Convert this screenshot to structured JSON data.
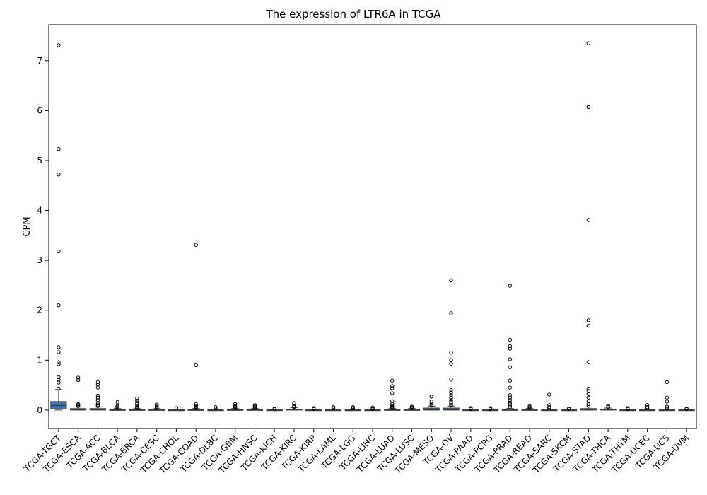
{
  "chart_data": {
    "type": "box",
    "title": "The expression of LTR6A in TCGA",
    "xlabel": "",
    "ylabel": "CPM",
    "ylim": [
      -0.37,
      7.72
    ],
    "yticks": [
      0,
      1,
      2,
      3,
      4,
      5,
      6,
      7
    ],
    "box_color": "#3b75af",
    "categories": [
      "TCGA-TGCT",
      "TCGA-ESCA",
      "TCGA-ACC",
      "TCGA-BLCA",
      "TCGA-BRCA",
      "TCGA-CESC",
      "TCGA-CHOL",
      "TCGA-COAD",
      "TCGA-DLBC",
      "TCGA-GBM",
      "TCGA-HNSC",
      "TCGA-KICH",
      "TCGA-KIRC",
      "TCGA-KIRP",
      "TCGA-LAML",
      "TCGA-LGG",
      "TCGA-LIHC",
      "TCGA-LUAD",
      "TCGA-LUSC",
      "TCGA-MESO",
      "TCGA-OV",
      "TCGA-PAAD",
      "TCGA-PCPG",
      "TCGA-PRAD",
      "TCGA-READ",
      "TCGA-SARC",
      "TCGA-SKCM",
      "TCGA-STAD",
      "TCGA-THCA",
      "TCGA-THYM",
      "TCGA-UCEC",
      "TCGA-UCS",
      "TCGA-UVM"
    ],
    "boxes": [
      {
        "q1": 0.02,
        "median": 0.09,
        "q3": 0.17,
        "whisker_low": 0.0,
        "whisker_high": 0.41,
        "outliers": [
          7.31,
          5.23,
          4.72,
          3.18,
          2.1,
          1.26,
          1.16,
          0.96,
          0.92,
          0.66,
          0.61,
          0.55,
          0.43
        ]
      },
      {
        "q1": 0.0,
        "median": 0.01,
        "q3": 0.03,
        "whisker_low": 0.0,
        "whisker_high": 0.06,
        "outliers": [
          0.65,
          0.6,
          0.12,
          0.1,
          0.08
        ]
      },
      {
        "q1": 0.0,
        "median": 0.01,
        "q3": 0.03,
        "whisker_low": 0.0,
        "whisker_high": 0.06,
        "outliers": [
          0.56,
          0.51,
          0.45,
          0.29,
          0.25,
          0.2,
          0.13,
          0.1,
          0.08
        ]
      },
      {
        "q1": 0.0,
        "median": 0.0,
        "q3": 0.01,
        "whisker_low": 0.0,
        "whisker_high": 0.03,
        "outliers": [
          0.16,
          0.08,
          0.06,
          0.04
        ]
      },
      {
        "q1": 0.0,
        "median": 0.0,
        "q3": 0.01,
        "whisker_low": 0.0,
        "whisker_high": 0.03,
        "outliers": [
          0.23,
          0.19,
          0.15,
          0.12,
          0.09,
          0.07,
          0.05,
          0.04
        ]
      },
      {
        "q1": 0.0,
        "median": 0.0,
        "q3": 0.01,
        "whisker_low": 0.0,
        "whisker_high": 0.03,
        "outliers": [
          0.11,
          0.09,
          0.07,
          0.05,
          0.04
        ]
      },
      {
        "q1": 0.0,
        "median": 0.0,
        "q3": 0.005,
        "whisker_low": 0.0,
        "whisker_high": 0.01,
        "outliers": [
          0.04
        ]
      },
      {
        "q1": 0.0,
        "median": 0.0,
        "q3": 0.01,
        "whisker_low": 0.0,
        "whisker_high": 0.03,
        "outliers": [
          3.31,
          0.9,
          0.12,
          0.09,
          0.07,
          0.05,
          0.04
        ]
      },
      {
        "q1": 0.0,
        "median": 0.0,
        "q3": 0.005,
        "whisker_low": 0.0,
        "whisker_high": 0.01,
        "outliers": [
          0.06,
          0.03
        ]
      },
      {
        "q1": 0.0,
        "median": 0.0,
        "q3": 0.01,
        "whisker_low": 0.0,
        "whisker_high": 0.03,
        "outliers": [
          0.12,
          0.08,
          0.06,
          0.04
        ]
      },
      {
        "q1": 0.0,
        "median": 0.0,
        "q3": 0.01,
        "whisker_low": 0.0,
        "whisker_high": 0.03,
        "outliers": [
          0.1,
          0.08,
          0.06,
          0.04
        ]
      },
      {
        "q1": 0.0,
        "median": 0.0,
        "q3": 0.005,
        "whisker_low": 0.0,
        "whisker_high": 0.01,
        "outliers": [
          0.03,
          0.02
        ]
      },
      {
        "q1": 0.0,
        "median": 0.01,
        "q3": 0.02,
        "whisker_low": 0.0,
        "whisker_high": 0.05,
        "outliers": [
          0.14,
          0.09,
          0.07,
          0.06
        ]
      },
      {
        "q1": 0.0,
        "median": 0.0,
        "q3": 0.005,
        "whisker_low": 0.0,
        "whisker_high": 0.01,
        "outliers": [
          0.04,
          0.03,
          0.02
        ]
      },
      {
        "q1": 0.0,
        "median": 0.0,
        "q3": 0.005,
        "whisker_low": 0.0,
        "whisker_high": 0.01,
        "outliers": [
          0.06,
          0.04,
          0.03
        ]
      },
      {
        "q1": 0.0,
        "median": 0.0,
        "q3": 0.005,
        "whisker_low": 0.0,
        "whisker_high": 0.01,
        "outliers": [
          0.06,
          0.04,
          0.03
        ]
      },
      {
        "q1": 0.0,
        "median": 0.0,
        "q3": 0.005,
        "whisker_low": 0.0,
        "whisker_high": 0.01,
        "outliers": [
          0.05,
          0.03,
          0.02
        ]
      },
      {
        "q1": 0.0,
        "median": 0.0,
        "q3": 0.01,
        "whisker_low": 0.0,
        "whisker_high": 0.03,
        "outliers": [
          0.59,
          0.48,
          0.44,
          0.34,
          0.18,
          0.12,
          0.09,
          0.07,
          0.05,
          0.04
        ]
      },
      {
        "q1": 0.0,
        "median": 0.0,
        "q3": 0.01,
        "whisker_low": 0.0,
        "whisker_high": 0.03,
        "outliers": [
          0.07,
          0.05,
          0.04
        ]
      },
      {
        "q1": 0.0,
        "median": 0.01,
        "q3": 0.04,
        "whisker_low": 0.0,
        "whisker_high": 0.08,
        "outliers": [
          0.27,
          0.17,
          0.13,
          0.1
        ]
      },
      {
        "q1": 0.0,
        "median": 0.01,
        "q3": 0.04,
        "whisker_low": 0.0,
        "whisker_high": 0.08,
        "outliers": [
          2.6,
          1.94,
          1.15,
          1.0,
          0.93,
          0.61,
          0.4,
          0.35,
          0.3,
          0.25,
          0.2,
          0.16,
          0.13,
          0.1
        ]
      },
      {
        "q1": 0.0,
        "median": 0.0,
        "q3": 0.005,
        "whisker_low": 0.0,
        "whisker_high": 0.01,
        "outliers": [
          0.04,
          0.03,
          0.02
        ]
      },
      {
        "q1": 0.0,
        "median": 0.0,
        "q3": 0.005,
        "whisker_low": 0.0,
        "whisker_high": 0.01,
        "outliers": [
          0.04,
          0.03,
          0.02
        ]
      },
      {
        "q1": 0.0,
        "median": 0.0,
        "q3": 0.01,
        "whisker_low": 0.0,
        "whisker_high": 0.03,
        "outliers": [
          2.49,
          1.41,
          1.28,
          1.23,
          1.02,
          0.86,
          0.59,
          0.45,
          0.3,
          0.25,
          0.2,
          0.15,
          0.12,
          0.09,
          0.06
        ]
      },
      {
        "q1": 0.0,
        "median": 0.0,
        "q3": 0.01,
        "whisker_low": 0.0,
        "whisker_high": 0.03,
        "outliers": [
          0.08,
          0.06,
          0.04
        ]
      },
      {
        "q1": 0.0,
        "median": 0.0,
        "q3": 0.005,
        "whisker_low": 0.0,
        "whisker_high": 0.01,
        "outliers": [
          0.31,
          0.1,
          0.06,
          0.04
        ]
      },
      {
        "q1": 0.0,
        "median": 0.0,
        "q3": 0.005,
        "whisker_low": 0.0,
        "whisker_high": 0.01,
        "outliers": [
          0.03,
          0.02
        ]
      },
      {
        "q1": 0.0,
        "median": 0.01,
        "q3": 0.03,
        "whisker_low": 0.0,
        "whisker_high": 0.06,
        "outliers": [
          7.35,
          6.07,
          3.81,
          1.8,
          1.69,
          0.96,
          0.43,
          0.38,
          0.32,
          0.25,
          0.18,
          0.12,
          0.09
        ]
      },
      {
        "q1": 0.0,
        "median": 0.01,
        "q3": 0.02,
        "whisker_low": 0.0,
        "whisker_high": 0.04,
        "outliers": [
          0.09,
          0.07,
          0.06
        ]
      },
      {
        "q1": 0.0,
        "median": 0.0,
        "q3": 0.005,
        "whisker_low": 0.0,
        "whisker_high": 0.01,
        "outliers": [
          0.04,
          0.03,
          0.02
        ]
      },
      {
        "q1": 0.0,
        "median": 0.0,
        "q3": 0.005,
        "whisker_low": 0.0,
        "whisker_high": 0.01,
        "outliers": [
          0.1,
          0.06,
          0.04
        ]
      },
      {
        "q1": 0.0,
        "median": 0.0,
        "q3": 0.005,
        "whisker_low": 0.0,
        "whisker_high": 0.01,
        "outliers": [
          0.56,
          0.25,
          0.17,
          0.07,
          0.04
        ]
      },
      {
        "q1": 0.0,
        "median": 0.0,
        "q3": 0.005,
        "whisker_low": 0.0,
        "whisker_high": 0.01,
        "outliers": [
          0.03,
          0.02
        ]
      }
    ]
  }
}
